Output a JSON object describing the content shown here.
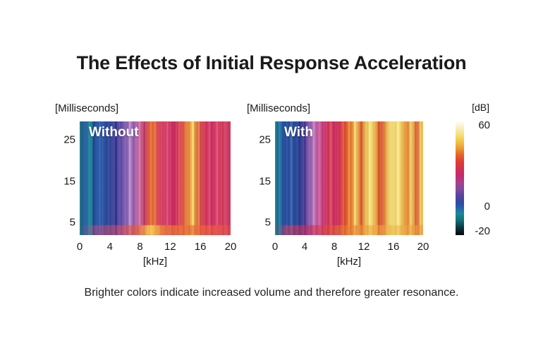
{
  "page": {
    "title": "The Effects of Initial Response Acceleration",
    "caption": "Brighter colors indicate increased volume and therefore greater resonance.",
    "background": "#ffffff",
    "text_color": "#1a1a1a"
  },
  "chart_data": [
    {
      "type": "heatmap",
      "id": "without",
      "overlay_label": "Without",
      "y_axis_title": "[Milliseconds]",
      "x_axis_title": "[kHz]",
      "x_ticks": [
        0,
        4,
        8,
        12,
        16,
        20
      ],
      "y_ticks": [
        25,
        15,
        5
      ],
      "x_range": [
        0,
        20
      ],
      "y_range": [
        2,
        29.5
      ],
      "description": "Spectrogram without initial response acceleration: blue (low dB) below ~5 kHz, purple 5-8 kHz, crimson/red 9-20 kHz with orange-yellow resonance bands near 10-11 kHz and 15-16 kHz.",
      "base_stops": [
        [
          "#17707e",
          0
        ],
        [
          "#2b57a8",
          4
        ],
        [
          "#1f7e92",
          7
        ],
        [
          "#2450a2",
          11
        ],
        [
          "#2b55a8",
          16
        ],
        [
          "#3a4399",
          22
        ],
        [
          "#5e4ba6",
          27
        ],
        [
          "#8a62b2",
          31
        ],
        [
          "#a273b8",
          34
        ],
        [
          "#b364ab",
          37
        ],
        [
          "#c4507f",
          41
        ],
        [
          "#d84a50",
          45
        ],
        [
          "#df6237",
          48
        ],
        [
          "#da4052",
          52
        ],
        [
          "#d33563",
          57
        ],
        [
          "#d23066",
          62
        ],
        [
          "#da4548",
          67
        ],
        [
          "#e58a3c",
          72
        ],
        [
          "#edc253",
          75
        ],
        [
          "#e0623c",
          78
        ],
        [
          "#d63a55",
          82
        ],
        [
          "#cf3064",
          88
        ],
        [
          "#d43a58",
          94
        ],
        [
          "#ca3a67",
          100
        ]
      ],
      "streaks": [
        {
          "pos": 6,
          "width": 1.6,
          "color": "#1b8d9c",
          "opacity": 0.9
        },
        {
          "pos": 9.5,
          "width": 1.2,
          "color": "#1d3f8e",
          "opacity": 0.8
        },
        {
          "pos": 13,
          "width": 1.0,
          "color": "#4a7ec4",
          "opacity": 0.8
        },
        {
          "pos": 18,
          "width": 1.2,
          "color": "#223a8c",
          "opacity": 0.7
        },
        {
          "pos": 24,
          "width": 1.2,
          "color": "#2f2f8a",
          "opacity": 0.8
        },
        {
          "pos": 33,
          "width": 1.0,
          "color": "#c9a2da",
          "opacity": 0.9
        },
        {
          "pos": 36,
          "width": 1.2,
          "color": "#7a4fa8",
          "opacity": 0.8
        },
        {
          "pos": 39.5,
          "width": 1.0,
          "color": "#df86c0",
          "opacity": 0.85
        },
        {
          "pos": 43,
          "width": 0.8,
          "color": "#b03060",
          "opacity": 0.7
        },
        {
          "pos": 47,
          "width": 1.4,
          "color": "#ef8434",
          "opacity": 0.9
        },
        {
          "pos": 50,
          "width": 1.0,
          "color": "#f2a447",
          "opacity": 0.85
        },
        {
          "pos": 54,
          "width": 0.8,
          "color": "#e87a96",
          "opacity": 0.7
        },
        {
          "pos": 58,
          "width": 1.0,
          "color": "#ea7a9e",
          "opacity": 0.75
        },
        {
          "pos": 63,
          "width": 1.4,
          "color": "#bb2450",
          "opacity": 0.8
        },
        {
          "pos": 66,
          "width": 0.8,
          "color": "#e8638a",
          "opacity": 0.7
        },
        {
          "pos": 70,
          "width": 1.0,
          "color": "#ec8040",
          "opacity": 0.85
        },
        {
          "pos": 75,
          "width": 1.8,
          "color": "#f6db6e",
          "opacity": 0.95
        },
        {
          "pos": 79,
          "width": 1.0,
          "color": "#ea9a4a",
          "opacity": 0.8
        },
        {
          "pos": 86,
          "width": 1.0,
          "color": "#e05578",
          "opacity": 0.8
        },
        {
          "pos": 91,
          "width": 1.0,
          "color": "#f07da0",
          "opacity": 0.8
        },
        {
          "pos": 96,
          "width": 1.4,
          "color": "#dd4a6e",
          "opacity": 0.8
        }
      ],
      "bottom_band_stops": [
        [
          "rgba(215,70,120,0)",
          0
        ],
        [
          "rgba(215,70,120,0.45)",
          10
        ],
        [
          "rgba(220,75,100,0.55)",
          25
        ],
        [
          "rgba(230,90,50,0.75)",
          38
        ],
        [
          "rgba(248,205,85,0.95)",
          47
        ],
        [
          "rgba(238,120,50,0.8)",
          56
        ],
        [
          "rgba(235,110,55,0.7)",
          70
        ],
        [
          "rgba(238,95,60,0.7)",
          85
        ],
        [
          "rgba(230,75,75,0.6)",
          100
        ]
      ]
    },
    {
      "type": "heatmap",
      "id": "with",
      "overlay_label": "With",
      "y_axis_title": "[Milliseconds]",
      "x_axis_title": "[kHz]",
      "x_ticks": [
        0,
        4,
        8,
        12,
        16,
        20
      ],
      "y_ticks": [
        25,
        15,
        5
      ],
      "x_range": [
        0,
        20
      ],
      "y_range": [
        2,
        29.5
      ],
      "description": "Spectrogram with initial response acceleration: blue below ~4 kHz, purple/pink 4-7 kHz, crimson 7-10 kHz, and dominant bright yellow/orange (high dB) from ~11-20 kHz.",
      "base_stops": [
        [
          "#1b7f8c",
          0
        ],
        [
          "#2856a8",
          4
        ],
        [
          "#2b50a3",
          9
        ],
        [
          "#28489c",
          14
        ],
        [
          "#3a3d94",
          18
        ],
        [
          "#7a50a6",
          22
        ],
        [
          "#a66ab4",
          25
        ],
        [
          "#c05fa8",
          28
        ],
        [
          "#cc3f80",
          32
        ],
        [
          "#d23562",
          36
        ],
        [
          "#cc2f68",
          40
        ],
        [
          "#d63a50",
          44
        ],
        [
          "#e0562f",
          48
        ],
        [
          "#e98430",
          52
        ],
        [
          "#eec355",
          55
        ],
        [
          "#e0642f",
          58
        ],
        [
          "#edcd60",
          62
        ],
        [
          "#f0d468",
          66
        ],
        [
          "#e88c34",
          69
        ],
        [
          "#dc5532",
          72
        ],
        [
          "#eabd55",
          76
        ],
        [
          "#f2d86e",
          80
        ],
        [
          "#f0d468",
          85
        ],
        [
          "#e89038",
          88
        ],
        [
          "#f0d060",
          92
        ],
        [
          "#e2753a",
          96
        ],
        [
          "#eec45a",
          100
        ]
      ],
      "streaks": [
        {
          "pos": 3,
          "width": 1.5,
          "color": "#1d8a96",
          "opacity": 0.85
        },
        {
          "pos": 7,
          "width": 1.2,
          "color": "#1e4694",
          "opacity": 0.8
        },
        {
          "pos": 11,
          "width": 1.0,
          "color": "#4a7ec0",
          "opacity": 0.7
        },
        {
          "pos": 16,
          "width": 1.0,
          "color": "#22368a",
          "opacity": 0.8
        },
        {
          "pos": 20,
          "width": 1.0,
          "color": "#302e88",
          "opacity": 0.8
        },
        {
          "pos": 26,
          "width": 1.0,
          "color": "#d194cc",
          "opacity": 0.85
        },
        {
          "pos": 30,
          "width": 1.0,
          "color": "#e06cac",
          "opacity": 0.8
        },
        {
          "pos": 34,
          "width": 0.8,
          "color": "#b02858",
          "opacity": 0.7
        },
        {
          "pos": 37.5,
          "width": 1.0,
          "color": "#e2653a",
          "opacity": 0.9
        },
        {
          "pos": 42,
          "width": 1.0,
          "color": "#c02a5e",
          "opacity": 0.8
        },
        {
          "pos": 46,
          "width": 0.8,
          "color": "#ea7a40",
          "opacity": 0.8
        },
        {
          "pos": 50,
          "width": 1.0,
          "color": "#f2a444",
          "opacity": 0.85
        },
        {
          "pos": 54,
          "width": 1.4,
          "color": "#f7e384",
          "opacity": 0.9
        },
        {
          "pos": 58,
          "width": 1.0,
          "color": "#d84a30",
          "opacity": 0.85
        },
        {
          "pos": 64,
          "width": 1.8,
          "color": "#f8e88c",
          "opacity": 0.9
        },
        {
          "pos": 70,
          "width": 1.2,
          "color": "#cc4632",
          "opacity": 0.85
        },
        {
          "pos": 74,
          "width": 0.8,
          "color": "#ea9040",
          "opacity": 0.8
        },
        {
          "pos": 78,
          "width": 1.4,
          "color": "#f6e488",
          "opacity": 0.9
        },
        {
          "pos": 83,
          "width": 1.8,
          "color": "#f8ea92",
          "opacity": 0.9
        },
        {
          "pos": 87,
          "width": 1.0,
          "color": "#e8a04a",
          "opacity": 0.8
        },
        {
          "pos": 90,
          "width": 1.0,
          "color": "#e07a35",
          "opacity": 0.85
        },
        {
          "pos": 95,
          "width": 1.0,
          "color": "#d85535",
          "opacity": 0.85
        },
        {
          "pos": 98,
          "width": 1.2,
          "color": "#f4da70",
          "opacity": 0.85
        }
      ],
      "bottom_band_stops": [
        [
          "rgba(210,60,90,0)",
          0
        ],
        [
          "rgba(215,60,95,0.6)",
          8
        ],
        [
          "rgba(200,40,90,0.65)",
          22
        ],
        [
          "rgba(225,70,60,0.6)",
          35
        ],
        [
          "rgba(235,120,45,0.7)",
          48
        ],
        [
          "rgba(240,160,60,0.6)",
          62
        ],
        [
          "rgba(242,180,70,0.55)",
          80
        ],
        [
          "rgba(238,150,60,0.6)",
          100
        ]
      ]
    },
    {
      "type": "colorbar",
      "title": "[dB]",
      "ticks": [
        60,
        0,
        -20
      ],
      "range": [
        -20,
        60
      ],
      "orientation": "vertical",
      "stops": [
        [
          "#ffffff",
          0
        ],
        [
          "#faf1cc",
          5
        ],
        [
          "#f6e07c",
          12
        ],
        [
          "#f1c647",
          18
        ],
        [
          "#ed9b32",
          24
        ],
        [
          "#e6612a",
          30
        ],
        [
          "#de3b36",
          36
        ],
        [
          "#d32f52",
          42
        ],
        [
          "#c22a70",
          48
        ],
        [
          "#a83f8e",
          54
        ],
        [
          "#7e4a9e",
          60
        ],
        [
          "#52459c",
          66
        ],
        [
          "#2e4aa3",
          72
        ],
        [
          "#2a5eae",
          76
        ],
        [
          "#1a8995",
          81
        ],
        [
          "#127078",
          87
        ],
        [
          "#0b3c42",
          93
        ],
        [
          "#070707",
          100
        ]
      ]
    }
  ]
}
